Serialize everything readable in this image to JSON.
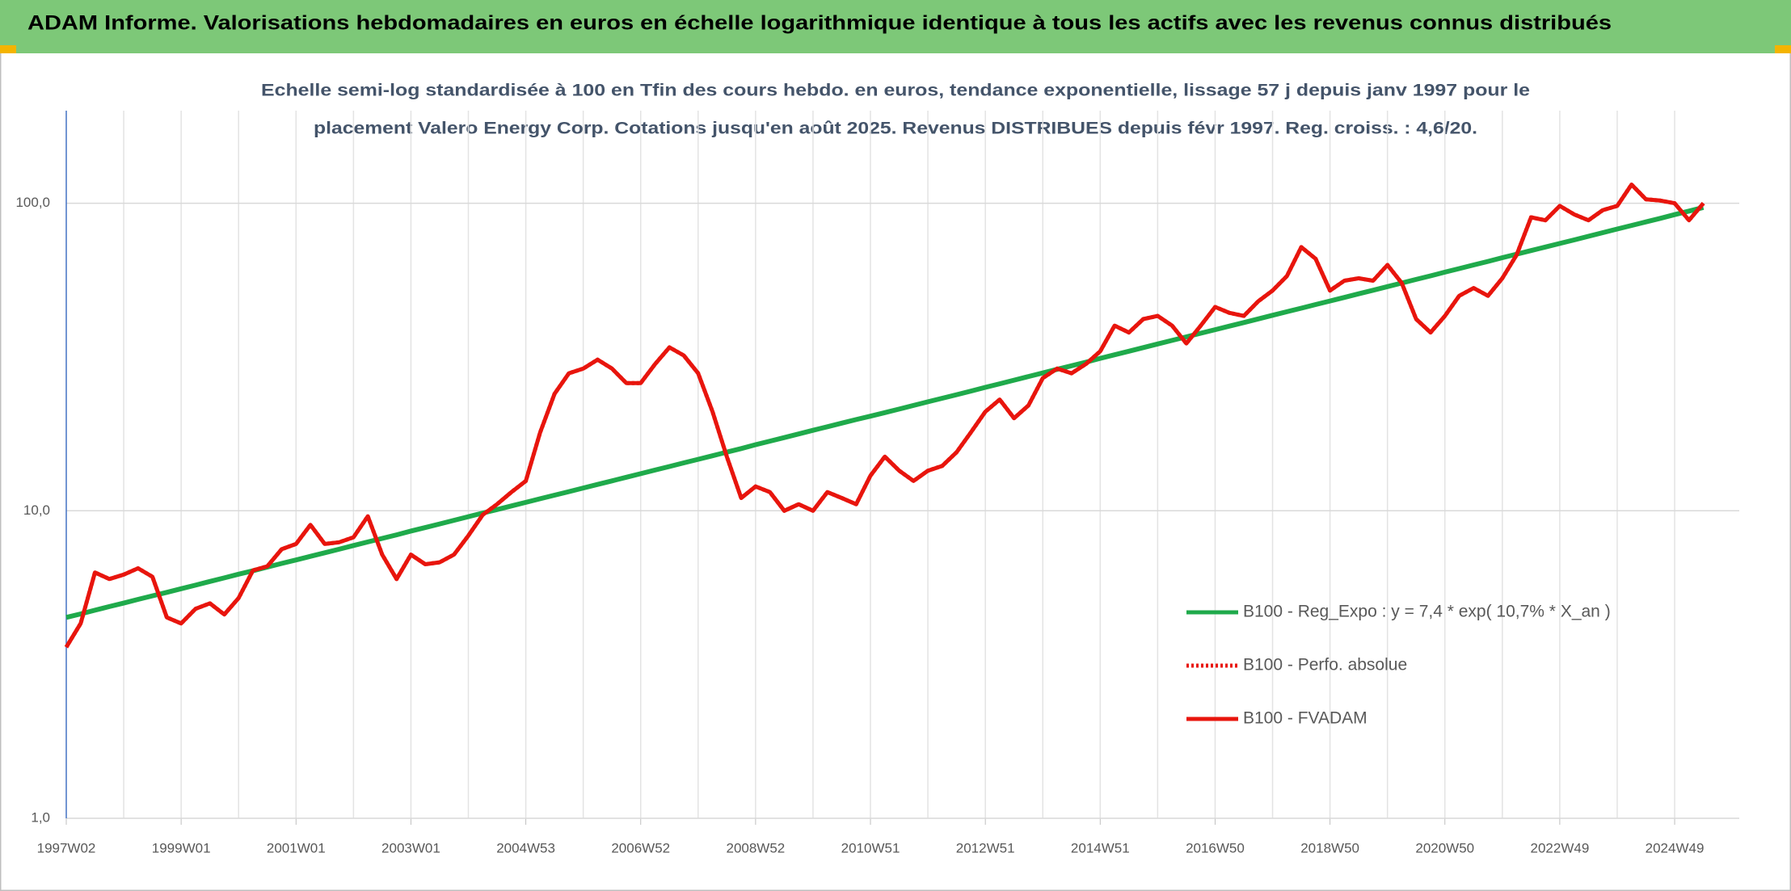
{
  "chart_data": {
    "type": "line",
    "title": "ADAM Informe. Valorisations hebdomadaires en euros en échelle logarithmique identique à tous les actifs avec les revenus connus distribués",
    "subtitle": [
      "Echelle semi-log standardisée à 100 en Tfin des cours hebdo. en euros, tendance exponentielle, lissage 57 j depuis janv 1997 pour le",
      "placement Valero Energy Corp. Cotations jusqu'en août 2025. Revenus DISTRIBUES depuis févr 1997. Reg. croiss. : 4,6/20."
    ],
    "log_scale": true,
    "ylim": [
      1,
      200
    ],
    "yticks": [
      {
        "value": 1,
        "label": "1,0"
      },
      {
        "value": 10,
        "label": "10,0"
      },
      {
        "value": 100,
        "label": "100,0"
      }
    ],
    "grid": true,
    "legend": "lower right",
    "categories": [
      "1997W02",
      null,
      null,
      null,
      null,
      null,
      null,
      null,
      "1999W01",
      null,
      null,
      null,
      null,
      null,
      null,
      null,
      "2001W01",
      null,
      null,
      null,
      null,
      null,
      null,
      null,
      "2003W01",
      null,
      null,
      null,
      null,
      null,
      null,
      null,
      "2004W53",
      null,
      null,
      null,
      null,
      null,
      null,
      null,
      "2006W52",
      null,
      null,
      null,
      null,
      null,
      null,
      null,
      "2008W52",
      null,
      null,
      null,
      null,
      null,
      null,
      null,
      "2010W51",
      null,
      null,
      null,
      null,
      null,
      null,
      null,
      "2012W51",
      null,
      null,
      null,
      null,
      null,
      null,
      null,
      "2014W51",
      null,
      null,
      null,
      null,
      null,
      null,
      null,
      "2016W50",
      null,
      null,
      null,
      null,
      null,
      null,
      null,
      "2018W50",
      null,
      null,
      null,
      null,
      null,
      null,
      null,
      "2020W50",
      null,
      null,
      null,
      null,
      null,
      null,
      null,
      "2022W49",
      null,
      null,
      null,
      null,
      null,
      null,
      null,
      "2024W49",
      null,
      null
    ],
    "series": [
      {
        "name": "B100 - Reg_Expo : y = 7,4 * exp( 10,7% *  X_an )",
        "color": "#1faa4b",
        "style": "solid",
        "values": [
          4.5,
          4.62,
          4.75,
          4.88,
          5.01,
          5.15,
          5.29,
          5.43,
          5.58,
          5.73,
          5.89,
          6.05,
          6.22,
          6.38,
          6.56,
          6.74,
          6.92,
          7.11,
          7.3,
          7.5,
          7.71,
          7.92,
          8.13,
          8.35,
          8.59,
          8.82,
          9.06,
          9.31,
          9.57,
          9.83,
          10.09,
          10.37,
          10.65,
          10.94,
          11.24,
          11.54,
          11.86,
          12.18,
          12.51,
          12.85,
          13.2,
          13.56,
          13.93,
          14.31,
          14.7,
          15.1,
          15.51,
          15.93,
          16.4,
          16.84,
          17.3,
          17.78,
          18.27,
          18.76,
          19.27,
          19.79,
          20.3,
          20.85,
          21.42,
          22.01,
          22.61,
          23.22,
          23.85,
          24.5,
          25.2,
          25.88,
          26.59,
          27.32,
          28.07,
          28.83,
          29.61,
          30.42,
          31.3,
          32.15,
          33.02,
          33.93,
          34.87,
          35.81,
          36.78,
          37.78,
          38.8,
          39.85,
          40.93,
          42.06,
          43.22,
          44.39,
          45.59,
          46.83,
          48.1,
          49.4,
          50.75,
          52.14,
          53.58,
          55.03,
          56.52,
          58.06,
          59.7,
          61.31,
          62.98,
          64.71,
          66.51,
          68.3,
          70.15,
          72.06,
          74.0,
          76.0,
          78.07,
          80.22,
          82.44,
          84.66,
          86.95,
          89.32,
          91.8,
          94.28,
          96.9
        ]
      },
      {
        "name": "B100 - Perfo. absolue",
        "color": "#e8150d",
        "style": "dotted",
        "values": [
          3.6,
          4.3,
          6.3,
          6.0,
          6.2,
          6.5,
          6.1,
          4.5,
          4.3,
          4.8,
          5.0,
          4.6,
          5.2,
          6.4,
          6.6,
          7.5,
          7.8,
          9.0,
          7.8,
          7.9,
          8.2,
          9.6,
          7.2,
          6.0,
          7.2,
          6.7,
          6.8,
          7.2,
          8.3,
          9.7,
          10.5,
          11.5,
          12.5,
          18,
          24,
          28,
          29,
          31,
          29,
          26,
          26,
          30,
          34,
          32,
          28,
          21,
          15,
          11,
          12,
          11.5,
          10,
          10.5,
          10,
          11.5,
          11,
          10.5,
          13,
          15,
          13.5,
          12.5,
          13.5,
          14,
          15.5,
          18,
          21,
          23,
          20,
          22,
          27,
          29,
          28,
          30,
          33,
          40,
          38,
          42,
          43,
          40,
          35,
          40,
          46,
          44,
          43,
          48,
          52,
          58,
          72,
          66,
          52,
          56,
          57,
          56,
          63,
          55,
          42,
          38,
          43,
          50,
          53,
          50,
          57,
          68,
          90,
          88,
          98,
          92,
          88,
          95,
          98,
          115,
          103,
          102,
          100,
          88,
          100
        ]
      },
      {
        "name": "B100 - FVADAM",
        "color": "#e8150d",
        "style": "solid",
        "values": [
          3.6,
          4.3,
          6.3,
          6.0,
          6.2,
          6.5,
          6.1,
          4.5,
          4.3,
          4.8,
          5.0,
          4.6,
          5.2,
          6.4,
          6.6,
          7.5,
          7.8,
          9.0,
          7.8,
          7.9,
          8.2,
          9.6,
          7.2,
          6.0,
          7.2,
          6.7,
          6.8,
          7.2,
          8.3,
          9.7,
          10.5,
          11.5,
          12.5,
          18,
          24,
          28,
          29,
          31,
          29,
          26,
          26,
          30,
          34,
          32,
          28,
          21,
          15,
          11,
          12,
          11.5,
          10,
          10.5,
          10,
          11.5,
          11,
          10.5,
          13,
          15,
          13.5,
          12.5,
          13.5,
          14,
          15.5,
          18,
          21,
          23,
          20,
          22,
          27,
          29,
          28,
          30,
          33,
          40,
          38,
          42,
          43,
          40,
          35,
          40,
          46,
          44,
          43,
          48,
          52,
          58,
          72,
          66,
          52,
          56,
          57,
          56,
          63,
          55,
          42,
          38,
          43,
          50,
          53,
          50,
          57,
          68,
          90,
          88,
          98,
          92,
          88,
          95,
          98,
          115,
          103,
          102,
          100,
          88,
          100
        ]
      }
    ]
  }
}
